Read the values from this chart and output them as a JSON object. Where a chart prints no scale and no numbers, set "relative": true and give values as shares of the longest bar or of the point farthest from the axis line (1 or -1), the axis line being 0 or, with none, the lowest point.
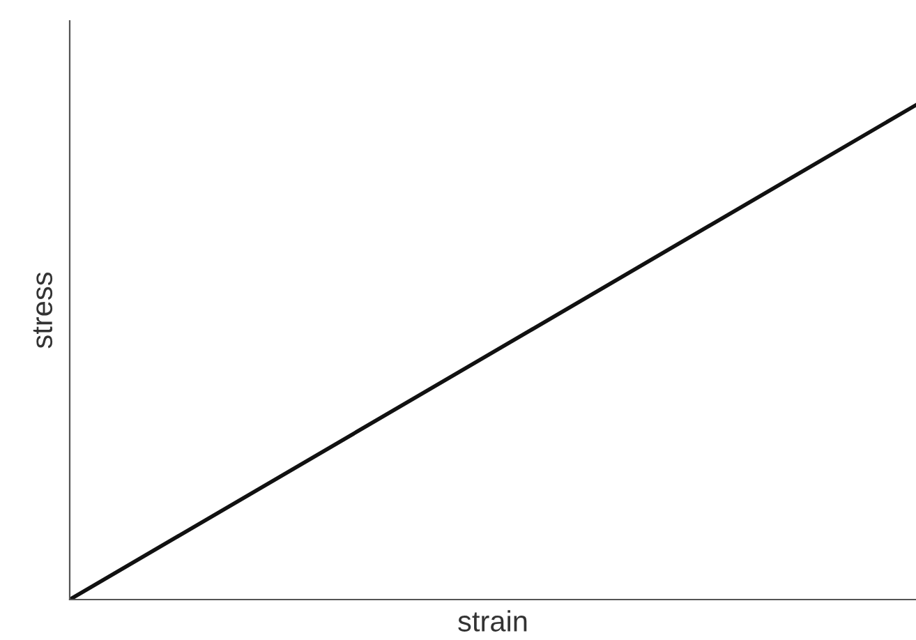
{
  "chart_data": {
    "type": "line",
    "xlabel": "strain",
    "ylabel": "stress",
    "relative": true,
    "categories": [
      null,
      null
    ],
    "series": [
      {
        "color": "#111111",
        "values": [
          0,
          1
        ]
      }
    ],
    "grid": false,
    "legend": false,
    "marker": "none",
    "line_style": "solid"
  }
}
